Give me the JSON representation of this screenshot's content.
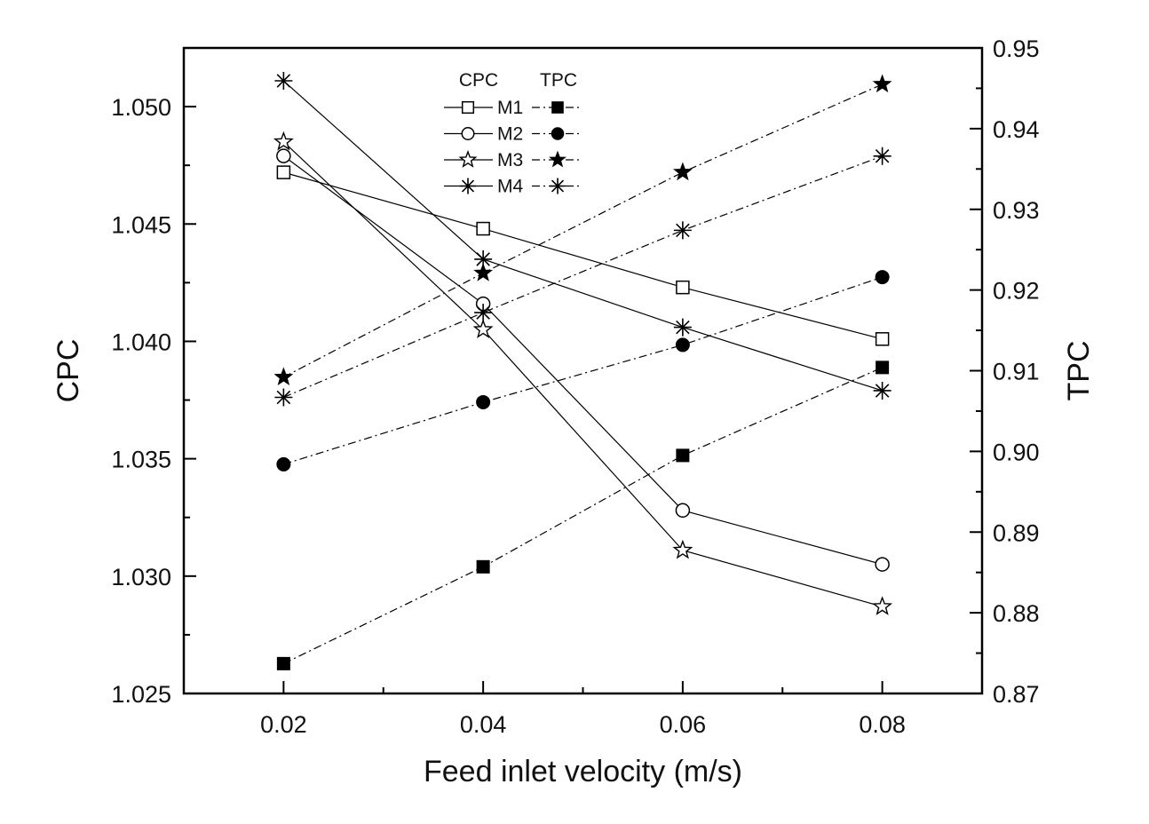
{
  "chart_data": {
    "type": "line",
    "x": [
      0.02,
      0.04,
      0.06,
      0.08
    ],
    "x_ticks": [
      "0.02",
      "0.04",
      "0.06",
      "0.08"
    ],
    "xlabel": "Feed inlet velocity (m/s)",
    "xlim": [
      0.01,
      0.09
    ],
    "ylabel_left": "CPC",
    "ylim_left": [
      1.025,
      1.0525
    ],
    "yticks_left": [
      "1.025",
      "1.030",
      "1.035",
      "1.040",
      "1.045",
      "1.050"
    ],
    "ylabel_right": "TPC",
    "ylim_right": [
      0.87,
      0.95
    ],
    "yticks_right": [
      "0.87",
      "0.88",
      "0.89",
      "0.90",
      "0.91",
      "0.92",
      "0.93",
      "0.94",
      "0.95"
    ],
    "legend": {
      "position": "top-center",
      "header_cpc": "CPC",
      "header_tpc": "TPC",
      "entries": [
        "M1",
        "M2",
        "M3",
        "M4"
      ]
    },
    "series": [
      {
        "name": "M1",
        "group": "CPC",
        "axis": "left",
        "marker": "square-open",
        "line": "solid",
        "values": [
          1.0472,
          1.0448,
          1.0423,
          1.0401
        ]
      },
      {
        "name": "M2",
        "group": "CPC",
        "axis": "left",
        "marker": "circle-open",
        "line": "solid",
        "values": [
          1.0479,
          1.0416,
          1.0328,
          1.0305
        ]
      },
      {
        "name": "M3",
        "group": "CPC",
        "axis": "left",
        "marker": "star-open",
        "line": "solid",
        "values": [
          1.0485,
          1.0405,
          1.0311,
          1.0287
        ]
      },
      {
        "name": "M4",
        "group": "CPC",
        "axis": "left",
        "marker": "asterisk",
        "line": "solid",
        "values": [
          1.0511,
          1.0435,
          1.0406,
          1.0379
        ]
      },
      {
        "name": "M1",
        "group": "TPC",
        "axis": "right",
        "marker": "square-filled",
        "line": "dashdot",
        "values": [
          0.8737,
          0.8857,
          0.8995,
          0.9104
        ]
      },
      {
        "name": "M2",
        "group": "TPC",
        "axis": "right",
        "marker": "circle-filled",
        "line": "dashdot",
        "values": [
          0.8984,
          0.9061,
          0.9132,
          0.9216
        ]
      },
      {
        "name": "M3",
        "group": "TPC",
        "axis": "right",
        "marker": "star-filled",
        "line": "dashdot",
        "values": [
          0.9092,
          0.9221,
          0.9346,
          0.9455
        ]
      },
      {
        "name": "M4",
        "group": "TPC",
        "axis": "right",
        "marker": "asterisk",
        "line": "dashdot",
        "values": [
          0.9067,
          0.9172,
          0.9274,
          0.9366
        ]
      }
    ]
  }
}
